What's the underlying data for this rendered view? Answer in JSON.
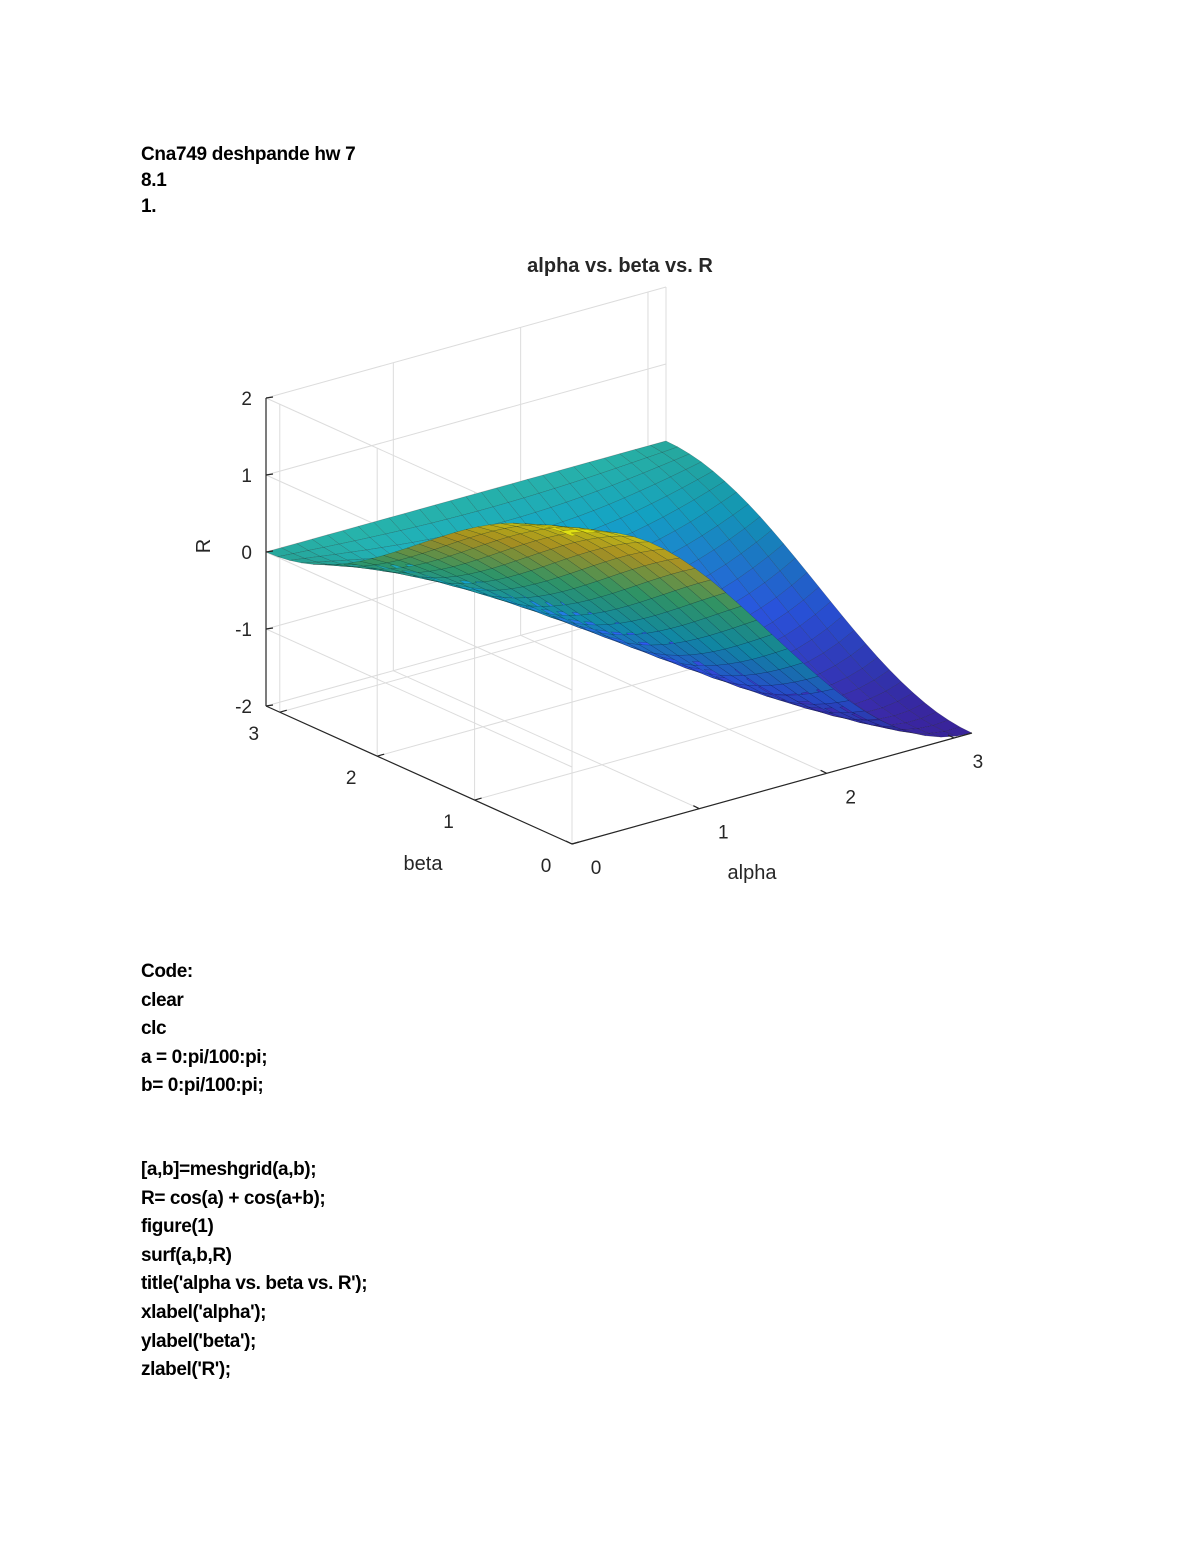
{
  "header": {
    "lines": [
      "Cna749 deshpande hw 7",
      "8.1",
      "1."
    ]
  },
  "chart_data": {
    "type": "surface",
    "title": "alpha vs. beta vs. R",
    "xlabel": "alpha",
    "ylabel": "beta",
    "zlabel": "R",
    "xlim": [
      0,
      3.1416
    ],
    "ylim": [
      0,
      3.1416
    ],
    "zlim": [
      -2,
      2
    ],
    "x_ticks": [
      "0",
      "1",
      "2",
      "3"
    ],
    "y_ticks": [
      "0",
      "1",
      "2",
      "3"
    ],
    "z_ticks": [
      "-2",
      "-1",
      "0",
      "1",
      "2"
    ],
    "function": "R = cos(alpha) + cos(alpha+beta)",
    "grid": true,
    "colormap": [
      "#3e26a8",
      "#2f5efa",
      "#15aed2",
      "#3ec185",
      "#dcbc2c",
      "#f9fb15"
    ]
  },
  "code": {
    "label": "Code:",
    "lines_a": [
      "clear",
      "clc",
      "a = 0:pi/100:pi;",
      "b= 0:pi/100:pi;"
    ],
    "lines_b": [
      "[a,b]=meshgrid(a,b);",
      "R= cos(a) + cos(a+b);",
      "figure(1)",
      "surf(a,b,R)",
      "title('alpha vs. beta vs. R');",
      "xlabel('alpha');",
      "ylabel('beta');",
      "zlabel('R');"
    ]
  }
}
